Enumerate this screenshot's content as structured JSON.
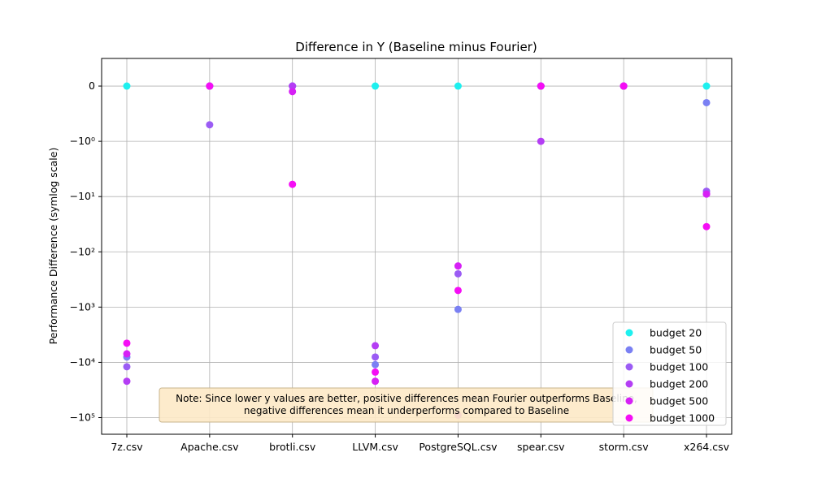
{
  "chart_data": {
    "type": "scatter",
    "title": "Difference in Y (Baseline minus Fourier)",
    "xlabel": "",
    "ylabel": "Performance Difference (symlog scale)",
    "yscale": "symlog",
    "categories": [
      "7z.csv",
      "Apache.csv",
      "brotli.csv",
      "LLVM.csv",
      "PostgreSQL.csv",
      "spear.csv",
      "storm.csv",
      "x264.csv"
    ],
    "y_ticks": [
      {
        "value": 0,
        "label": "0"
      },
      {
        "value": -1,
        "label": "−10⁰"
      },
      {
        "value": -10,
        "label": "−10¹"
      },
      {
        "value": -100,
        "label": "−10²"
      },
      {
        "value": -1000,
        "label": "−10³"
      },
      {
        "value": -10000,
        "label": "−10⁴"
      },
      {
        "value": -100000,
        "label": "−10⁵"
      }
    ],
    "ylim": [
      -200000,
      0.5
    ],
    "grid": true,
    "legend_position": "lower-right",
    "series": [
      {
        "name": "budget 20",
        "color": "#1ef0ef",
        "values": [
          0,
          0,
          0,
          0,
          0,
          0,
          0,
          0
        ]
      },
      {
        "name": "budget 50",
        "color": "#7a80f3",
        "values": [
          -8000,
          0,
          0,
          -11000,
          -1100,
          0,
          0,
          -0.3
        ]
      },
      {
        "name": "budget 100",
        "color": "#9b5cf4",
        "values": [
          -12000,
          -0.7,
          0,
          -8000,
          -250,
          0,
          0,
          -8
        ]
      },
      {
        "name": "budget 200",
        "color": "#b43ef4",
        "values": [
          -22000,
          0,
          0,
          -5000,
          -90000,
          -1,
          0,
          -9
        ]
      },
      {
        "name": "budget 500",
        "color": "#d620f5",
        "values": [
          -7000,
          0,
          -0.1,
          -22000,
          -180,
          0,
          0,
          -9
        ]
      },
      {
        "name": "budget 1000",
        "color": "#f50ef5",
        "values": [
          -4500,
          0,
          -6,
          -15000,
          -500,
          0,
          0,
          -35
        ]
      }
    ],
    "note": {
      "line1": "Note: Since lower y values are better, positive differences mean Fourier outperforms Baseline,",
      "line2": "negative differences mean it underperforms compared to Baseline"
    }
  }
}
